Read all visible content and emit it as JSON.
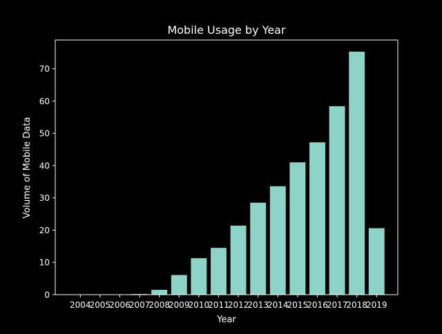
{
  "chart_data": {
    "type": "bar",
    "title": "Mobile Usage by Year",
    "xlabel": "Year",
    "ylabel": "Volume of Mobile Data",
    "categories": [
      "2004",
      "2005",
      "2006",
      "2007",
      "2008",
      "2009",
      "2010",
      "2011",
      "2012",
      "2013",
      "2014",
      "2015",
      "2016",
      "2017",
      "2018",
      "2019"
    ],
    "values": [
      0.0,
      0.0,
      0.0,
      0.2,
      1.5,
      6.1,
      11.3,
      14.5,
      21.4,
      28.5,
      33.6,
      41.0,
      47.2,
      58.4,
      75.3,
      20.6
    ],
    "ylim": [
      0,
      78.9
    ],
    "yticks": [
      0,
      10,
      20,
      30,
      40,
      50,
      60,
      70
    ],
    "grid": false,
    "colors": {
      "bar": "#8dd3c7",
      "background": "#000000",
      "axes": "#ffffff",
      "text": "#ffffff"
    }
  }
}
